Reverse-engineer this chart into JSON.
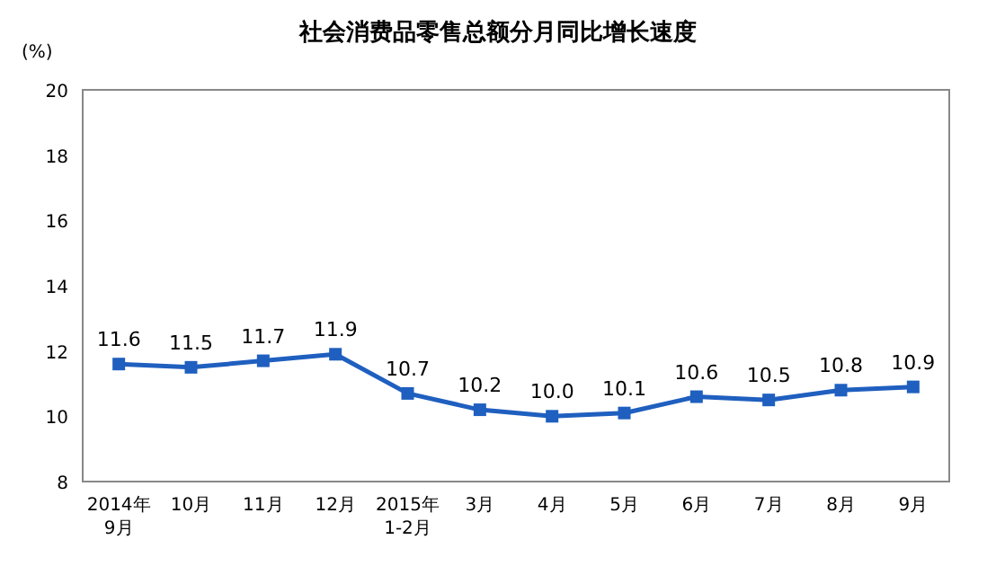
{
  "chart_data": {
    "type": "line",
    "title": "社会消费品零售总额分月同比增长速度",
    "ylabel": "(%)",
    "categories": [
      "2014年\n9月",
      "10月",
      "11月",
      "12月",
      "2015年\n1-2月",
      "3月",
      "4月",
      "5月",
      "6月",
      "7月",
      "8月",
      "9月"
    ],
    "series": [
      {
        "color": "#1f5fbf",
        "values": [
          11.6,
          11.5,
          11.7,
          11.9,
          10.7,
          10.2,
          10.0,
          10.1,
          10.6,
          10.5,
          10.8,
          10.9
        ],
        "value_labels": [
          "11.6",
          "11.5",
          "11.7",
          "11.9",
          "10.7",
          "10.2",
          "10.0",
          "10.1",
          "10.6",
          "10.5",
          "10.8",
          "10.9"
        ]
      }
    ],
    "ylim": [
      8,
      20
    ],
    "yticks": [
      8,
      10,
      12,
      14,
      16,
      18,
      20
    ],
    "marker": "square",
    "line_style": "solid"
  }
}
